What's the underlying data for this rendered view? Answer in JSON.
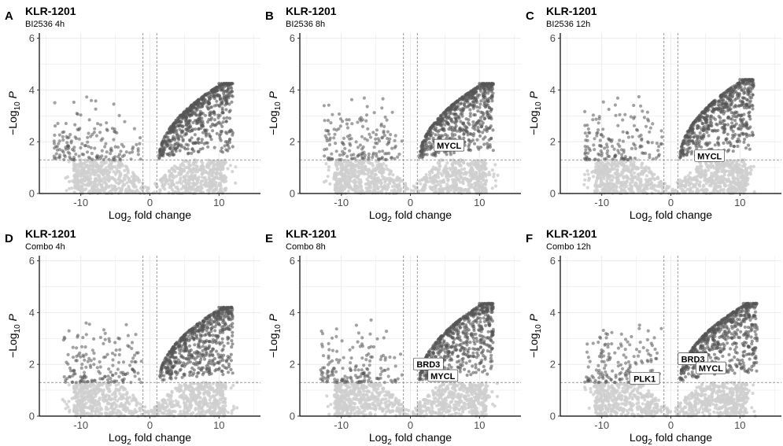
{
  "colors": {
    "significant": "#555555",
    "nonsignificant": "#cfcfcf",
    "grid": "#ebebeb",
    "threshold": "#7f7f7f",
    "axis": "#000000"
  },
  "chart_data": [
    {
      "panel": "A",
      "type": "scatter",
      "title": "KLR-1201",
      "subtitle": "BI2536 4h",
      "xlabel": "Log2 fold change",
      "ylabel": "−Log10 P",
      "xlim": [
        -16,
        16
      ],
      "ylim": [
        0,
        6.2
      ],
      "x_ticks": [
        -10,
        0,
        10
      ],
      "y_ticks": [
        0,
        2,
        4,
        6
      ],
      "fc_cutoff": 1,
      "p_cutoff": 1.3,
      "right_max_x": 12,
      "right_max_y": 4.25,
      "left_min_x": -14,
      "left_max_y": 4.1,
      "labels": []
    },
    {
      "panel": "B",
      "type": "scatter",
      "title": "KLR-1201",
      "subtitle": "BI2536 8h",
      "xlabel": "Log2 fold change",
      "ylabel": "−Log10 P",
      "xlim": [
        -16,
        16
      ],
      "ylim": [
        0,
        6.2
      ],
      "x_ticks": [
        -10,
        0,
        10
      ],
      "y_ticks": [
        0,
        2,
        4,
        6
      ],
      "fc_cutoff": 1,
      "p_cutoff": 1.3,
      "right_max_x": 12,
      "right_max_y": 4.25,
      "left_min_x": -12.5,
      "left_max_y": 4.15,
      "labels": [
        {
          "text": "MYCL",
          "x": 5.6,
          "y": 1.85
        }
      ]
    },
    {
      "panel": "C",
      "type": "scatter",
      "title": "KLR-1201",
      "subtitle": "BI2536 12h",
      "xlabel": "Log2 fold change",
      "ylabel": "−Log10 P",
      "xlim": [
        -16,
        16
      ],
      "ylim": [
        0,
        6.2
      ],
      "x_ticks": [
        -10,
        0,
        10
      ],
      "y_ticks": [
        0,
        2,
        4,
        6
      ],
      "fc_cutoff": 1,
      "p_cutoff": 1.3,
      "right_max_x": 12,
      "right_max_y": 4.4,
      "left_min_x": -12.5,
      "left_max_y": 3.95,
      "labels": [
        {
          "text": "MYCL",
          "x": 5.6,
          "y": 1.45
        }
      ]
    },
    {
      "panel": "D",
      "type": "scatter",
      "title": "KLR-1201",
      "subtitle": "Combo 4h",
      "xlabel": "Log2 fold change",
      "ylabel": "−Log10 P",
      "xlim": [
        -16,
        16
      ],
      "ylim": [
        0,
        6.2
      ],
      "x_ticks": [
        -10,
        0,
        10
      ],
      "y_ticks": [
        0,
        2,
        4,
        6
      ],
      "fc_cutoff": 1,
      "p_cutoff": 1.3,
      "right_max_x": 12,
      "right_max_y": 4.2,
      "left_min_x": -12.5,
      "left_max_y": 4.1,
      "labels": []
    },
    {
      "panel": "E",
      "type": "scatter",
      "title": "KLR-1201",
      "subtitle": "Combo 8h",
      "xlabel": "Log2 fold change",
      "ylabel": "−Log10 P",
      "xlim": [
        -16,
        16
      ],
      "ylim": [
        0,
        6.2
      ],
      "x_ticks": [
        -10,
        0,
        10
      ],
      "y_ticks": [
        0,
        2,
        4,
        6
      ],
      "fc_cutoff": 1,
      "p_cutoff": 1.3,
      "right_max_x": 12,
      "right_max_y": 4.35,
      "left_min_x": -13,
      "left_max_y": 4.05,
      "labels": [
        {
          "text": "BRD3",
          "x": 2.6,
          "y": 2.0
        },
        {
          "text": "MYCL",
          "x": 4.7,
          "y": 1.55
        }
      ]
    },
    {
      "panel": "F",
      "type": "scatter",
      "title": "KLR-1201",
      "subtitle": "Combo 12h",
      "xlabel": "Log2 fold change",
      "ylabel": "−Log10 P",
      "xlim": [
        -16,
        16
      ],
      "ylim": [
        0,
        6.2
      ],
      "x_ticks": [
        -10,
        0,
        10
      ],
      "y_ticks": [
        0,
        2,
        4,
        6
      ],
      "fc_cutoff": 1,
      "p_cutoff": 1.3,
      "right_max_x": 12.5,
      "right_max_y": 4.35,
      "left_min_x": -12.5,
      "left_max_y": 4.2,
      "labels": [
        {
          "text": "BRD3",
          "x": 3.2,
          "y": 2.2
        },
        {
          "text": "MYCL",
          "x": 5.8,
          "y": 1.85
        },
        {
          "text": "PLK1",
          "x": -3.8,
          "y": 1.45
        }
      ]
    }
  ]
}
